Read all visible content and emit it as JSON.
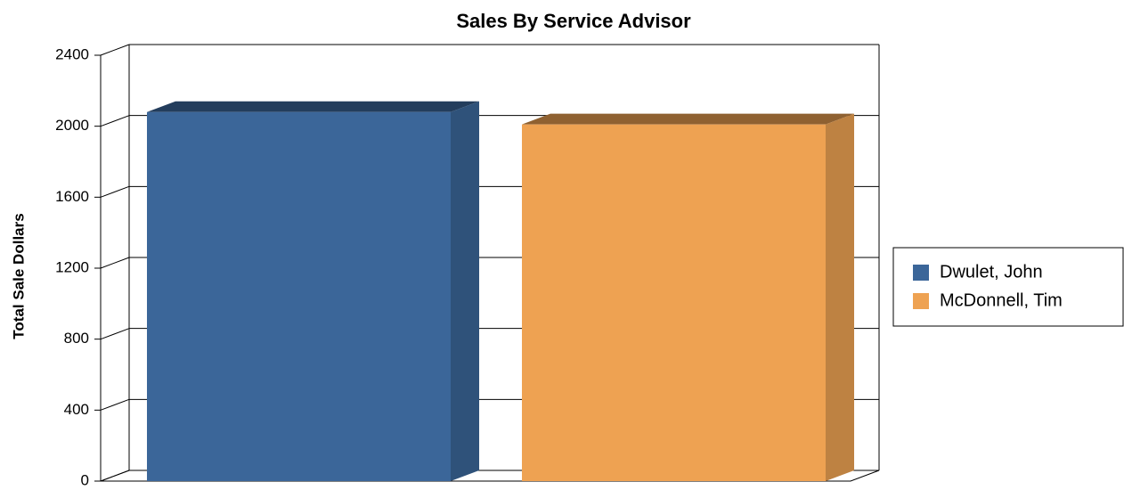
{
  "chart_data": {
    "type": "bar3d",
    "title": "Sales By Service Advisor",
    "y_label": "Total Sale Dollars",
    "series": [
      {
        "name": "Dwulet, John",
        "color": "#3b6699",
        "values": [
          2080
        ]
      },
      {
        "name": "McDonnell, Tim",
        "color": "#eea252",
        "values": [
          2010
        ]
      }
    ],
    "ylim": [
      0,
      2400
    ],
    "yticks": [
      0,
      400,
      800,
      1200,
      1600,
      2000,
      2400
    ],
    "grid": true,
    "legend": "right"
  }
}
